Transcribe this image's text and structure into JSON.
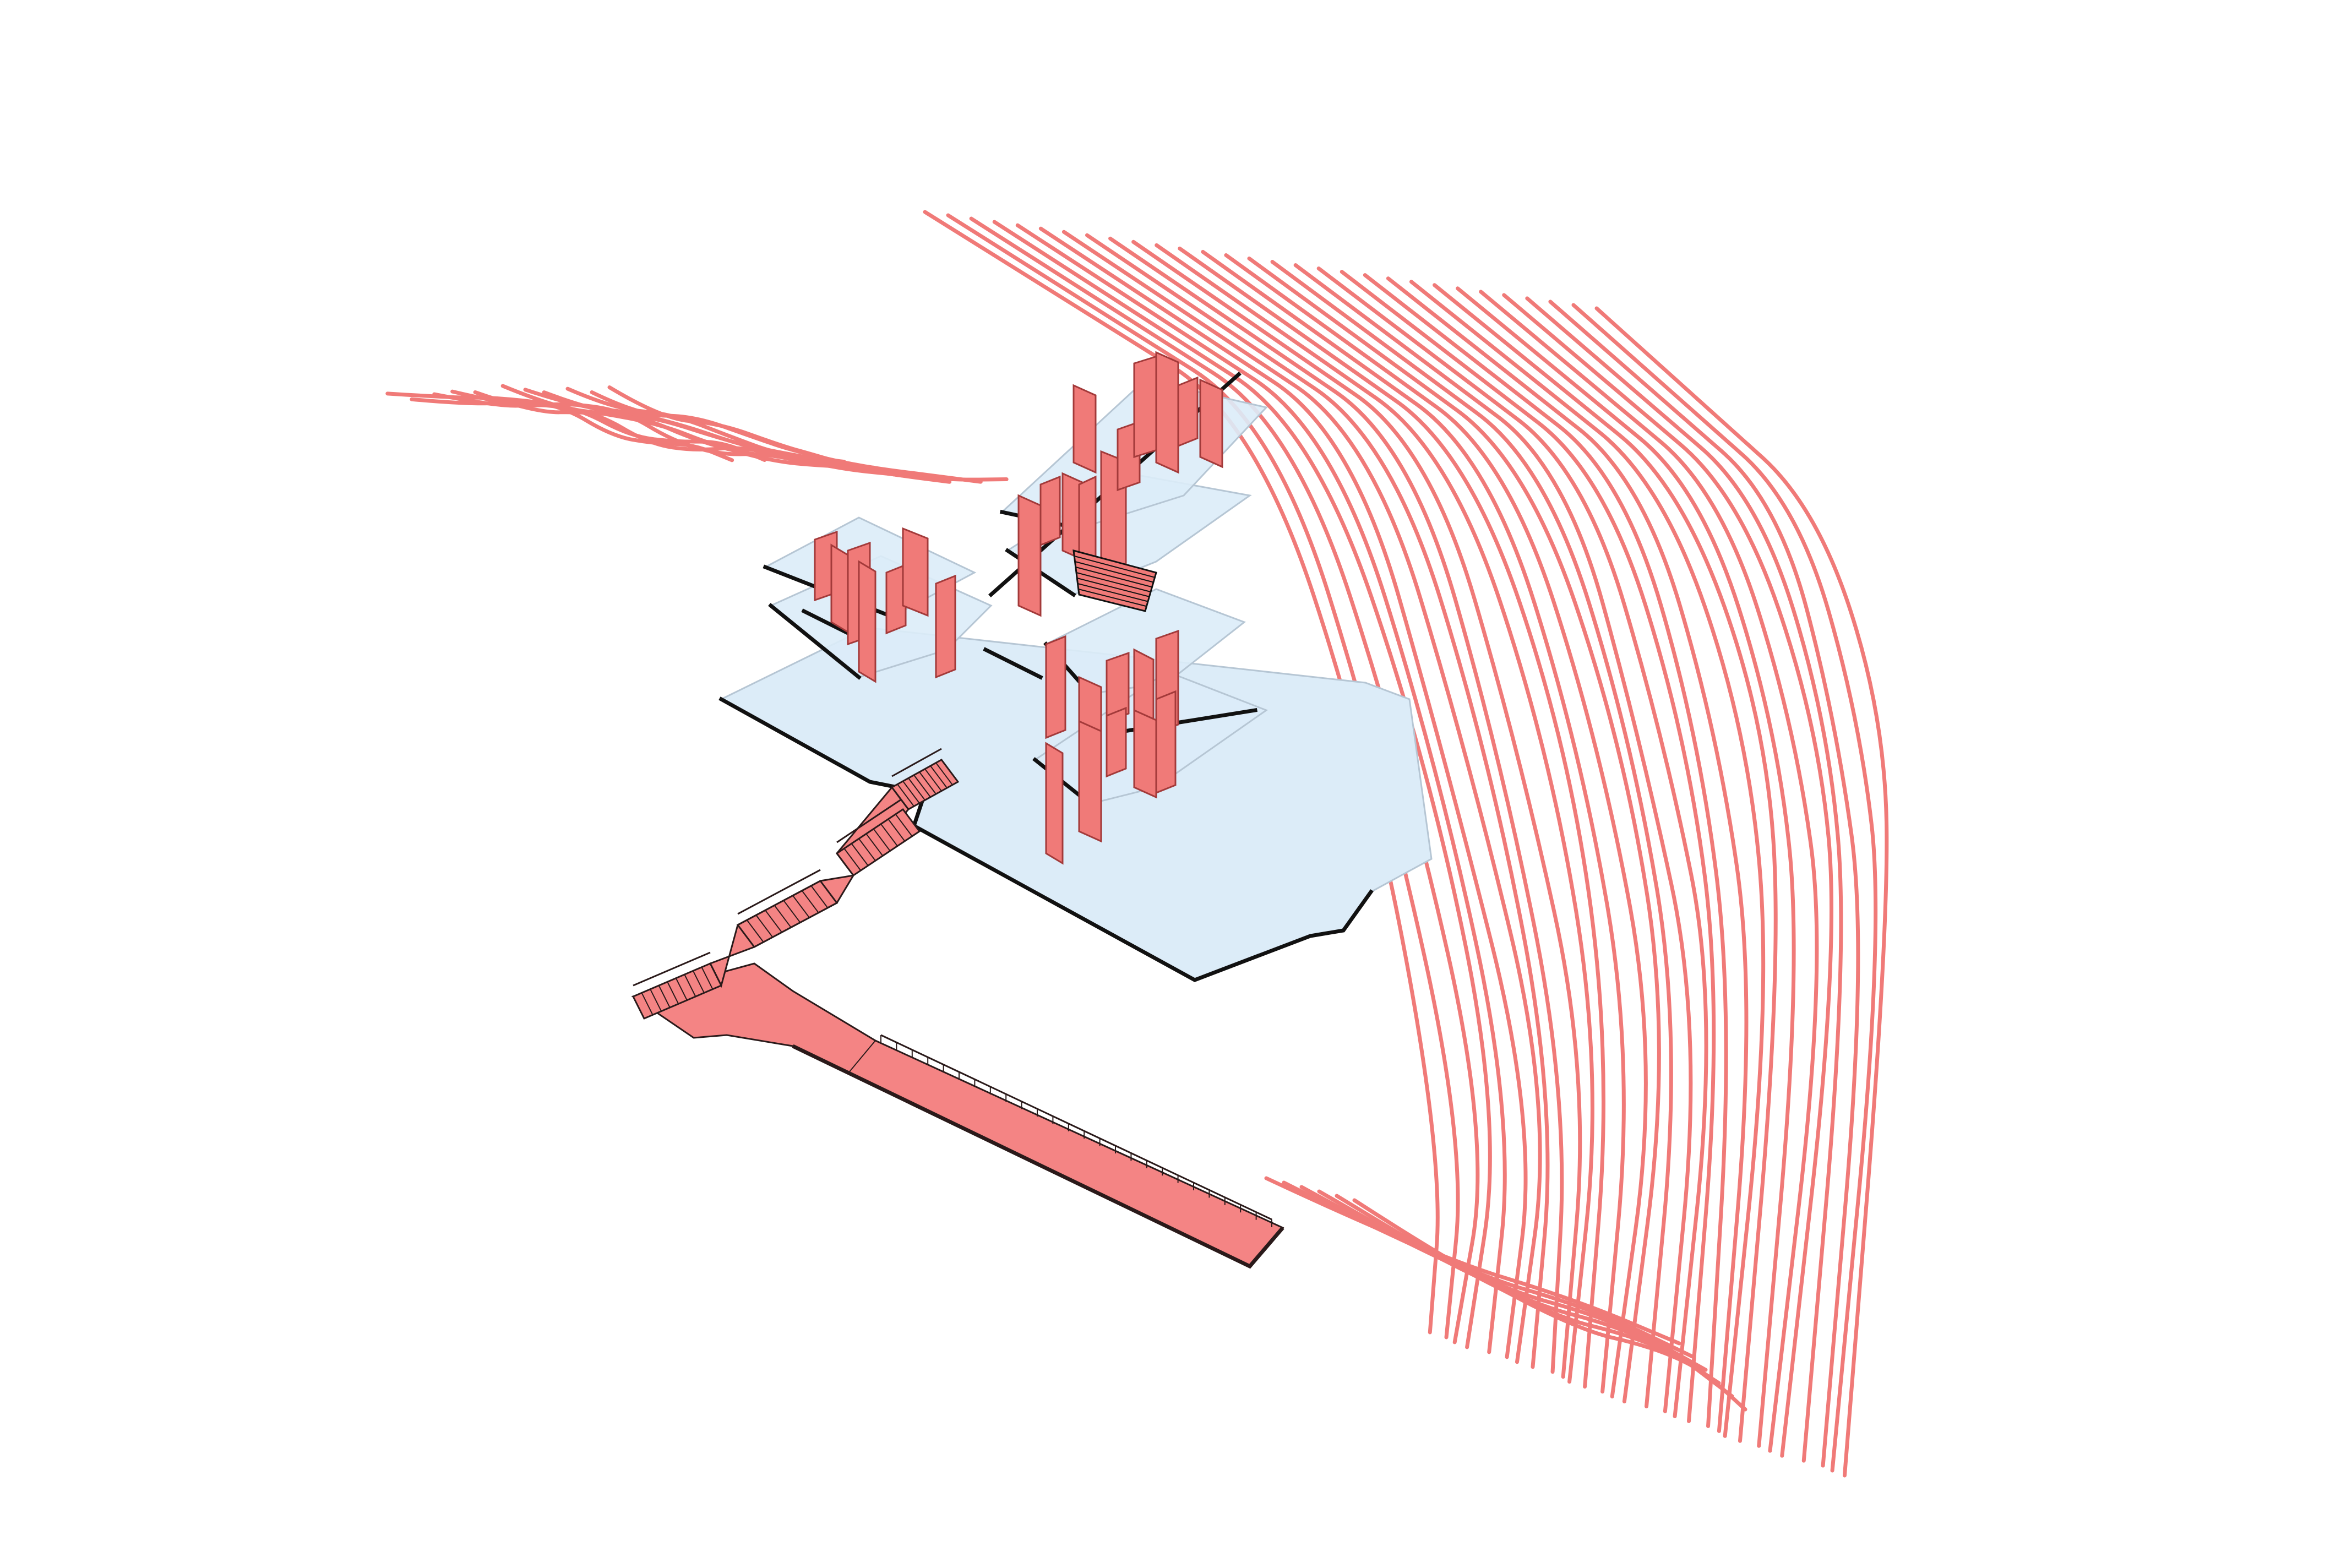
{
  "diagram": {
    "kind": "axonometric-site-diagram",
    "colors": {
      "background": "#ffffff",
      "contour": "#f07a78",
      "wall_fill": "#f07a78",
      "wall_stroke": "#a33a3a",
      "floor_fill": "#dcecf8",
      "floor_stroke": "#b6c6d4",
      "slab_edge": "#111111",
      "path_fill": "#f48484",
      "path_stroke": "#2a1a1a"
    },
    "layers": [
      {
        "id": "terrain-contours",
        "description_icon": "contour-lines-icon"
      },
      {
        "id": "building-floor-plates",
        "description_icon": "floor-plate-icon"
      },
      {
        "id": "red-walls",
        "description_icon": "wall-panel-icon"
      },
      {
        "id": "staircases",
        "description_icon": "stairs-icon"
      },
      {
        "id": "access-ramp-walkway",
        "description_icon": "ramp-icon"
      }
    ]
  }
}
